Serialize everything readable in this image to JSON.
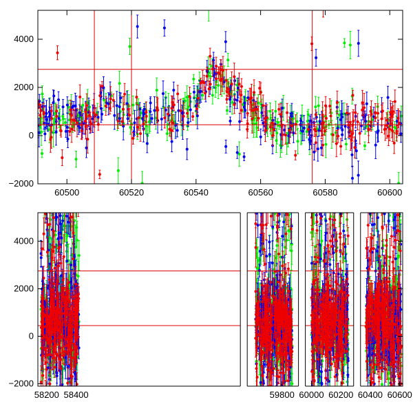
{
  "chart_data": [
    {
      "type": "scatter",
      "panel": "top",
      "xlim": [
        60491,
        60604
      ],
      "ylim": [
        -2000,
        5200
      ],
      "xticks": [
        60500,
        60520,
        60540,
        60560,
        60580,
        60600
      ],
      "yticks": [
        -2000,
        0,
        2000,
        4000
      ],
      "hlines": [
        2750,
        450
      ],
      "vlines": [
        60508.5,
        60520,
        60576
      ],
      "grid": false,
      "series_colors": [
        "#00ee00",
        "#0000ee",
        "#ee0000"
      ],
      "trend": {
        "x": [
          60491,
          60496,
          60500,
          60504,
          60508,
          60512,
          60516,
          60520,
          60524,
          60528,
          60532,
          60536,
          60540,
          60544,
          60548,
          60552,
          60556,
          60560,
          60564,
          60568,
          60572,
          60576,
          60580,
          60584,
          60588,
          60592,
          60596,
          60600,
          60604
        ],
        "y": [
          900,
          600,
          500,
          550,
          800,
          1400,
          1000,
          700,
          600,
          700,
          900,
          800,
          1500,
          2500,
          2600,
          1600,
          1100,
          800,
          600,
          500,
          450,
          400,
          450,
          550,
          600,
          500,
          550,
          500,
          500
        ]
      },
      "scatter_sd": 450,
      "outlier_fraction": 0.06,
      "points_per_series": 210
    },
    {
      "type": "scatter",
      "panel": "bottom",
      "xlim": [
        58140,
        60620
      ],
      "ylim": [
        -2100,
        5200
      ],
      "xticks": [
        58200,
        58400,
        59800,
        60000,
        60200,
        60400,
        60600
      ],
      "yticks": [
        -2000,
        0,
        2000,
        4000
      ],
      "hlines": [
        2750,
        450
      ],
      "grid": false,
      "series_colors": [
        "#00ee00",
        "#0000ee",
        "#ee0000"
      ],
      "segments": [
        [
          58160,
          58420
        ],
        [
          59620,
          59870
        ],
        [
          60000,
          60250
        ],
        [
          60370,
          60610
        ]
      ],
      "x_breaks_at": [
        59540,
        59935,
        60310
      ],
      "points_per_segment": 220
    }
  ]
}
